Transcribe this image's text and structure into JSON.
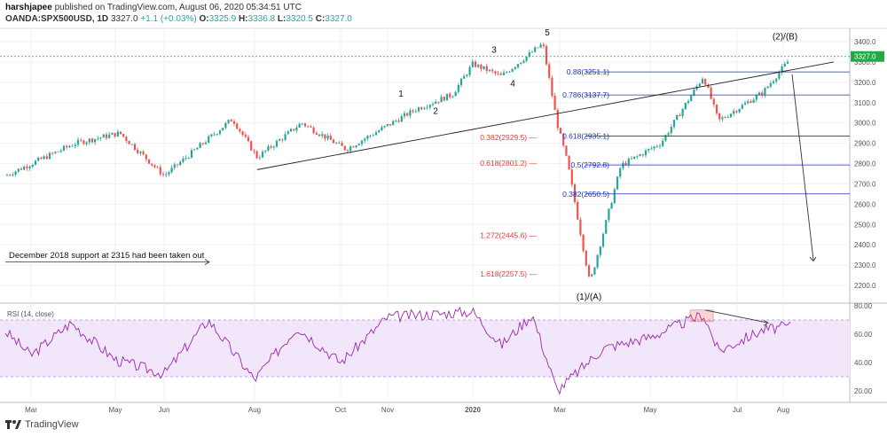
{
  "header": {
    "author": "harshjapee",
    "published": " published on TradingView.com, August 06, 2020 05:34:51 UTC",
    "symbol": "OANDA:SPX500USD, 1D",
    "last": "3327.0",
    "change": "+1.1 (+0.03%)",
    "ohlc": {
      "o": "3325.9",
      "h": "3336.8",
      "l": "3320.5",
      "c": "3327.0"
    }
  },
  "footer": {
    "brand": "TradingView"
  },
  "colors": {
    "up": "#26a69a",
    "down": "#ef5350",
    "fib_red": "#e53935",
    "fib_blue": "#2233bb",
    "rsi": "#9c27b0",
    "rsi_band": "#f1e6fa",
    "price_tag": "#22aa44"
  },
  "chart_data": [
    {
      "type": "candlestick",
      "title": "OANDA:SPX500USD, 1D",
      "x_ticks": [
        "Mar",
        "May",
        "Jun",
        "Aug",
        "Oct",
        "Nov",
        "2020",
        "Mar",
        "May",
        "Jul",
        "Aug"
      ],
      "y_ticks": [
        "3400.0",
        "3300.0",
        "3200.0",
        "3100.0",
        "3000.0",
        "2900.0",
        "2800.0",
        "2700.0",
        "2600.0",
        "2500.0",
        "2400.0",
        "2300.0",
        "2200.0"
      ],
      "ylim": [
        2160,
        3450
      ],
      "price_tag": "3327.0",
      "anchors": [
        {
          "x": "early 2019",
          "y": 2740
        },
        {
          "x": "Apr",
          "y": 2900
        },
        {
          "x": "May",
          "y": 2950
        },
        {
          "x": "Jun",
          "y": 2740
        },
        {
          "x": "late Jul",
          "y": 3020
        },
        {
          "x": "Aug",
          "y": 2830
        },
        {
          "x": "Sep",
          "y": 3000
        },
        {
          "x": "Oct",
          "y": 2870
        },
        {
          "x": "Nov",
          "y": 3070
        },
        {
          "x": "Dec",
          "y": 3140
        },
        {
          "x": "2020",
          "y": 3290
        },
        {
          "x": "late Jan",
          "y": 3230
        },
        {
          "x": "Feb",
          "y": 3390
        },
        {
          "x": "late Feb",
          "y": 3000
        },
        {
          "x": "Mar",
          "y": 2800
        },
        {
          "x": "mid Mar",
          "y": 2210
        },
        {
          "x": "Apr",
          "y": 2790
        },
        {
          "x": "May",
          "y": 2900
        },
        {
          "x": "early Jun",
          "y": 3230
        },
        {
          "x": "mid Jun",
          "y": 3010
        },
        {
          "x": "Jul",
          "y": 3150
        },
        {
          "x": "Aug",
          "y": 3327
        }
      ],
      "fib_levels_red": [
        {
          "label": "0.382(2929.5)",
          "value": 2929.5
        },
        {
          "label": "0.618(2801.2)",
          "value": 2801.2
        },
        {
          "label": "1.272(2445.6)",
          "value": 2445.6
        },
        {
          "label": "1.618(2257.5)",
          "value": 2257.5
        }
      ],
      "fib_levels_blue": [
        {
          "label": "0.88(3251.1)",
          "value": 3251.1
        },
        {
          "label": "0.786(3137.7)",
          "value": 3137.7
        },
        {
          "label": "0.618(2935.1)",
          "value": 2935.1
        },
        {
          "label": "0.5(2792.8)",
          "value": 2792.8
        },
        {
          "label": "0.382(2650.5)",
          "value": 2650.5
        }
      ],
      "wave_labels": [
        "1",
        "2",
        "3",
        "4",
        "5",
        "(1)/(A)",
        "(2)/(B)"
      ],
      "annotations": [
        "December 2018 support at 2315 had been taken out"
      ]
    },
    {
      "type": "line",
      "title": "RSI (14, close)",
      "y_ticks": [
        "80.00",
        "60.00",
        "40.00",
        "20.00"
      ],
      "ylim": [
        14,
        82
      ],
      "band": [
        30,
        70
      ],
      "anchors": [
        {
          "x": "early 2019",
          "y": 62
        },
        {
          "x": "Mar",
          "y": 45
        },
        {
          "x": "Apr",
          "y": 68
        },
        {
          "x": "May",
          "y": 42
        },
        {
          "x": "Jun",
          "y": 32
        },
        {
          "x": "Jul",
          "y": 70
        },
        {
          "x": "Aug",
          "y": 28
        },
        {
          "x": "Sep",
          "y": 65
        },
        {
          "x": "Oct",
          "y": 40
        },
        {
          "x": "Nov",
          "y": 72
        },
        {
          "x": "2020",
          "y": 76
        },
        {
          "x": "late Jan",
          "y": 52
        },
        {
          "x": "Feb",
          "y": 74
        },
        {
          "x": "Mar",
          "y": 20
        },
        {
          "x": "Apr",
          "y": 50
        },
        {
          "x": "May",
          "y": 58
        },
        {
          "x": "early Jun",
          "y": 74
        },
        {
          "x": "mid Jun",
          "y": 48
        },
        {
          "x": "Jul",
          "y": 63
        },
        {
          "x": "Aug",
          "y": 66
        }
      ]
    }
  ]
}
